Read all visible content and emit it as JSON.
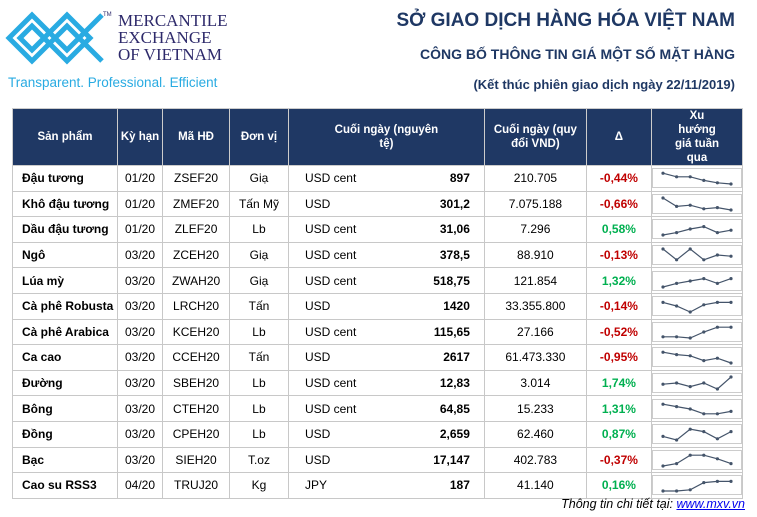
{
  "header": {
    "brand_lines": [
      "MERCANTILE",
      "EXCHANGE",
      "OF VIETNAM"
    ],
    "trademark": "TM",
    "tagline": "Transparent. Professional. Efficient",
    "title": "SỞ GIAO DỊCH HÀNG HÓA VIỆT NAM",
    "subtitle": "CÔNG BỐ THÔNG TIN GIÁ MỘT SỐ MẶT HÀNG",
    "session": "(Kết thúc phiên giao dịch ngày 22/11/2019)"
  },
  "colors": {
    "header_bg": "#1f3864",
    "negative": "#c00000",
    "positive": "#00b050",
    "sparkline": "#44546a"
  },
  "columns": [
    "Sản phẩm",
    "Kỳ hạn",
    "Mã HĐ",
    "Đơn vị",
    "Cuối ngày (nguyên tệ)",
    "Cuối ngày (quy đổi VND)",
    "Δ",
    "Xu hướng giá tuần qua"
  ],
  "rows": [
    {
      "product": "Đậu tương",
      "term": "01/20",
      "code": "ZSEF20",
      "unit": "Giạ",
      "currency": "USD cent",
      "close": "897",
      "close_vnd": "210.705",
      "change": "-0,44%",
      "trend": [
        9,
        6,
        6,
        3,
        1,
        0
      ]
    },
    {
      "product": "Khô đậu tương",
      "term": "01/20",
      "code": "ZMEF20",
      "unit": "Tấn Mỹ",
      "currency": "USD",
      "close": "301,2",
      "close_vnd": "7.075.188",
      "change": "-0,66%",
      "trend": [
        10,
        3,
        4,
        1,
        2,
        0
      ]
    },
    {
      "product": "Dầu đậu tương",
      "term": "01/20",
      "code": "ZLEF20",
      "unit": "Lb",
      "currency": "USD cent",
      "close": "31,06",
      "close_vnd": "7.296",
      "change": "0,58%",
      "trend": [
        0,
        2,
        5,
        7,
        2,
        4
      ]
    },
    {
      "product": "Ngô",
      "term": "03/20",
      "code": "ZCEH20",
      "unit": "Giạ",
      "currency": "USD cent",
      "close": "378,5",
      "close_vnd": "88.910",
      "change": "-0,13%",
      "trend": [
        10,
        1,
        10,
        1,
        5,
        4
      ]
    },
    {
      "product": "Lúa mỳ",
      "term": "03/20",
      "code": "ZWAH20",
      "unit": "Giạ",
      "currency": "USD cent",
      "close": "518,75",
      "close_vnd": "121.854",
      "change": "1,32%",
      "trend": [
        0,
        3,
        5,
        7,
        3,
        7
      ]
    },
    {
      "product": "Cà phê Robusta",
      "term": "03/20",
      "code": "LRCH20",
      "unit": "Tấn",
      "currency": "USD",
      "close": "1420",
      "close_vnd": "33.355.800",
      "change": "-0,14%",
      "trend": [
        8,
        5,
        0,
        6,
        8,
        8
      ]
    },
    {
      "product": "Cà phê Arabica",
      "term": "03/20",
      "code": "KCEH20",
      "unit": "Lb",
      "currency": "USD cent",
      "close": "115,65",
      "close_vnd": "27.166",
      "change": "-0,52%",
      "trend": [
        1,
        1,
        0,
        5,
        9,
        9
      ]
    },
    {
      "product": "Ca cao",
      "term": "03/20",
      "code": "CCEH20",
      "unit": "Tấn",
      "currency": "USD",
      "close": "2617",
      "close_vnd": "61.473.330",
      "change": "-0,95%",
      "trend": [
        9,
        7,
        6,
        2,
        4,
        0
      ]
    },
    {
      "product": "Đường",
      "term": "03/20",
      "code": "SBEH20",
      "unit": "Lb",
      "currency": "USD cent",
      "close": "12,83",
      "close_vnd": "3.014",
      "change": "1,74%",
      "trend": [
        4,
        5,
        2,
        5,
        0,
        10
      ]
    },
    {
      "product": "Bông",
      "term": "03/20",
      "code": "CTEH20",
      "unit": "Lb",
      "currency": "USD cent",
      "close": "64,85",
      "close_vnd": "15.233",
      "change": "1,31%",
      "trend": [
        9,
        7,
        5,
        1,
        1,
        3
      ]
    },
    {
      "product": "Đồng",
      "term": "03/20",
      "code": "CPEH20",
      "unit": "Lb",
      "currency": "USD",
      "close": "2,659",
      "close_vnd": "62.460",
      "change": "0,87%",
      "trend": [
        3,
        0,
        9,
        7,
        1,
        7
      ]
    },
    {
      "product": "Bạc",
      "term": "03/20",
      "code": "SIEH20",
      "unit": "T.oz",
      "currency": "USD",
      "close": "17,147",
      "close_vnd": "402.783",
      "change": "-0,37%",
      "trend": [
        0,
        2,
        9,
        9,
        6,
        2
      ]
    },
    {
      "product": "Cao su RSS3",
      "term": "04/20",
      "code": "TRUJ20",
      "unit": "Kg",
      "currency": "JPY",
      "close": "187",
      "close_vnd": "41.140",
      "change": "0,16%",
      "trend": [
        0,
        0,
        1,
        7,
        8,
        8
      ]
    }
  ],
  "footer": {
    "label": "Thông tin chi tiết tại: ",
    "link": "www.mxv.vn"
  }
}
